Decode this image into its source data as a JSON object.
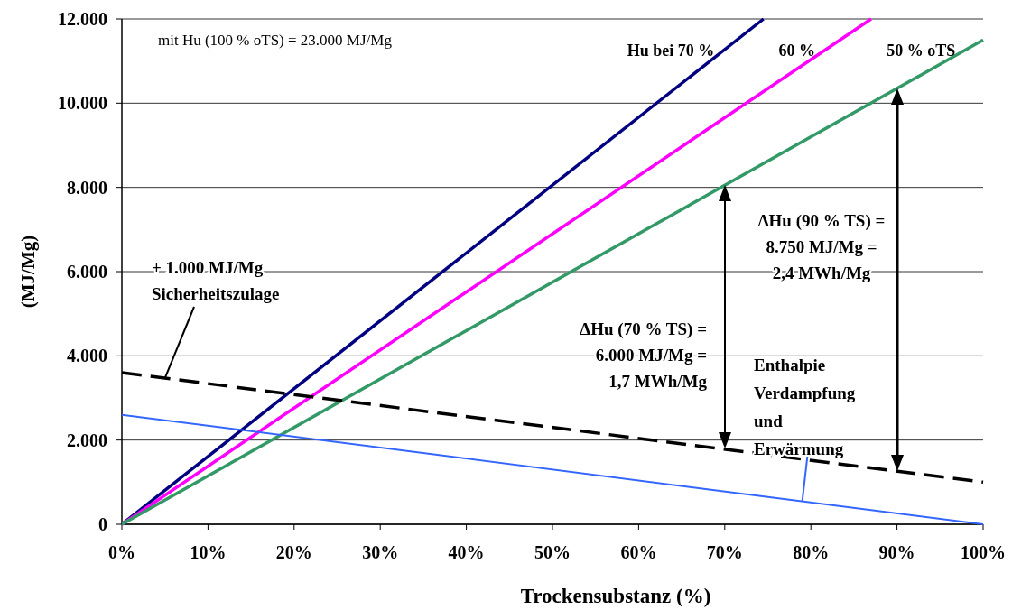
{
  "chart_data": {
    "type": "line",
    "xlabel": "Trockensubstanz (%)",
    "ylabel": "(MJ/Mg)",
    "xlim": [
      0,
      100
    ],
    "ylim": [
      0,
      12000
    ],
    "xticks": [
      {
        "value": 0,
        "label": "0%"
      },
      {
        "value": 10,
        "label": "10%"
      },
      {
        "value": 20,
        "label": "20%"
      },
      {
        "value": 30,
        "label": "30%"
      },
      {
        "value": 40,
        "label": "40%"
      },
      {
        "value": 50,
        "label": "50%"
      },
      {
        "value": 60,
        "label": "60%"
      },
      {
        "value": 70,
        "label": "70%"
      },
      {
        "value": 80,
        "label": "80%"
      },
      {
        "value": 90,
        "label": "90%"
      },
      {
        "value": 100,
        "label": "100%"
      }
    ],
    "yticks": [
      0,
      {
        "value": 2000,
        "label": "2.000"
      },
      {
        "value": 4000,
        "label": "4.000"
      },
      {
        "value": 6000,
        "label": "6.000"
      },
      {
        "value": 8000,
        "label": "8.000"
      },
      {
        "value": 10000,
        "label": "10.000"
      },
      {
        "value": 12000,
        "label": "12.000"
      }
    ],
    "grid": "y",
    "marker": "none",
    "series": [
      {
        "name": "Hu bei 70 %",
        "color": "#000080",
        "x": [
          0,
          74.5
        ],
        "values": [
          0,
          12000
        ]
      },
      {
        "name": "60 %",
        "color": "#ff00ff",
        "x": [
          0,
          87
        ],
        "values": [
          0,
          12000
        ]
      },
      {
        "name": "50 % oTS",
        "color": "#339966",
        "x": [
          0,
          100
        ],
        "values": [
          0,
          11500
        ]
      },
      {
        "color": "#000000",
        "line_style": "dashed",
        "x": [
          0,
          100
        ],
        "values": [
          3600,
          1000
        ]
      },
      {
        "color": "#3366ff",
        "x": [
          0,
          100
        ],
        "values": [
          2600,
          0
        ]
      }
    ],
    "annotations": [
      "mit Hu (100 % oTS) = 23.000 MJ/Mg",
      {
        "text": "+ 1.000 MJ/Mg\nSicherheitszulage",
        "x": 5,
        "y": 3470
      },
      "ΔHu (70 % TS) =\n6.000 MJ/Mg =\n1,7 MWh/Mg",
      "ΔHu (90 % TS) =\n8.750 MJ/Mg =\n2,4 MWh/Mg",
      {
        "text": "Enthalpie\nVerdampfung\nund\nErwärmung",
        "x": 79,
        "y": 546
      }
    ]
  }
}
